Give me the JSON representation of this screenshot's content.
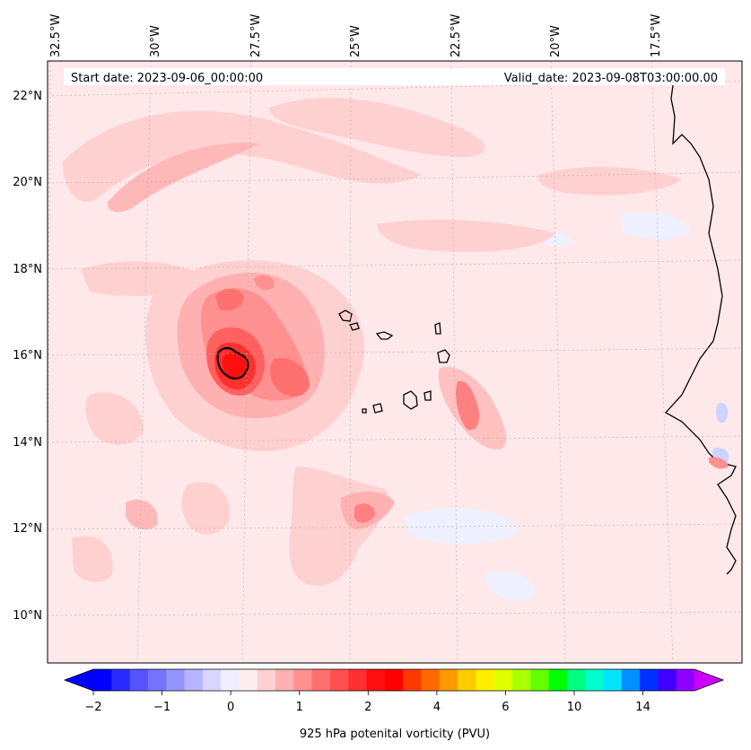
{
  "header": {
    "start_date": "Start date: 2023-09-06_00:00:00",
    "valid_date": "Valid_date: 2023-09-08T03:00:00.00"
  },
  "map": {
    "lon_labels": [
      "32.5°W",
      "30°W",
      "27.5°W",
      "25°W",
      "22.5°W",
      "20°W",
      "17.5°W"
    ],
    "lat_labels": [
      "22°N",
      "20°N",
      "18°N",
      "16°N",
      "14°N",
      "12°N",
      "10°N"
    ],
    "background_color": "#ffe8ea",
    "gridlines": true
  },
  "colorbar": {
    "title": "925 hPa potenital vorticity (PVU)",
    "tick_labels": [
      "−2",
      "−1",
      "0",
      "1",
      "2",
      "4",
      "6",
      "10",
      "14"
    ],
    "colors": [
      "#0000ff",
      "#2b2bff",
      "#5555ff",
      "#7373ff",
      "#9494ff",
      "#b5b5ff",
      "#d6d6ff",
      "#efefff",
      "#ffeef0",
      "#ffd0d0",
      "#ffb0b0",
      "#ff9090",
      "#ff7070",
      "#ff5050",
      "#ff3030",
      "#ff1010",
      "#ff0000",
      "#ff3a00",
      "#ff6a00",
      "#ff9a00",
      "#ffcc00",
      "#ffee00",
      "#e0ff00",
      "#aaff00",
      "#66ff00",
      "#00ff00",
      "#00ff80",
      "#00ffcc",
      "#00e5ff",
      "#0090ff",
      "#0030ff",
      "#4000ff",
      "#9000ff"
    ],
    "under_color": "#0000ff",
    "over_color": "#cc00ff"
  }
}
